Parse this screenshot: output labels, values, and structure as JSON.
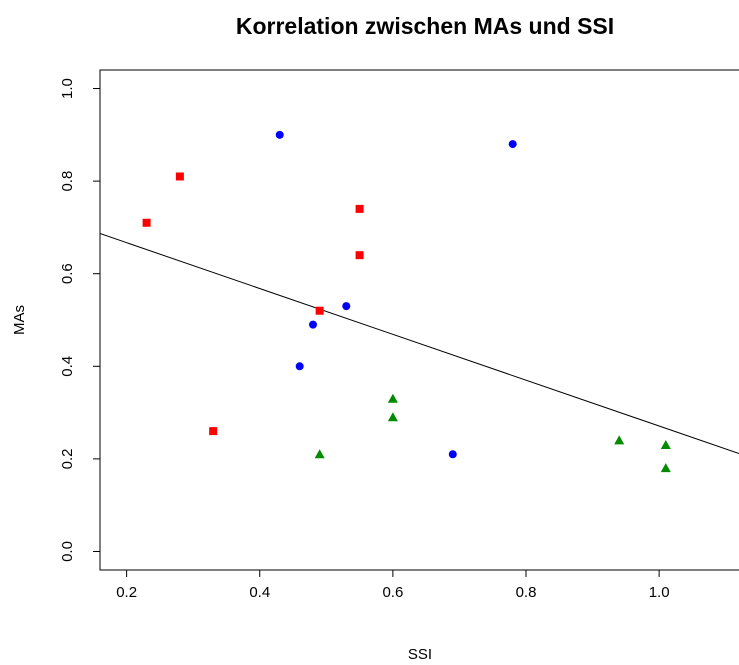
{
  "chart_data": {
    "type": "scatter",
    "title": "Korrelation zwischen MAs und SSI",
    "x_label": "SSI",
    "y_label": "MAs",
    "xlim": [
      0.16,
      1.12
    ],
    "ylim": [
      -0.04,
      1.04
    ],
    "xticks": [
      0.2,
      0.4,
      0.6,
      0.8,
      {
        "value": 1.0,
        "label": "1.0"
      }
    ],
    "yticks": [
      {
        "value": 0,
        "label": "0.0"
      },
      0.2,
      0.4,
      0.6,
      0.8,
      {
        "value": 1.0,
        "label": "1.0"
      }
    ],
    "series": [
      {
        "color": "#0000ff",
        "marker": "circle",
        "x": [
          0.43,
          0.78,
          0.53,
          0.48,
          0.46,
          0.69
        ],
        "values": [
          0.9,
          0.88,
          0.53,
          0.49,
          0.4,
          0.21
        ]
      },
      {
        "color": "#ff0000",
        "marker": "square",
        "x": [
          0.23,
          0.28,
          0.55,
          0.55,
          0.49,
          0.33
        ],
        "values": [
          0.71,
          0.81,
          0.74,
          0.64,
          0.52,
          0.26
        ]
      },
      {
        "color": "#008b00",
        "marker": "triangle",
        "x": [
          0.6,
          0.6,
          0.49,
          0.94,
          1.01,
          1.01
        ],
        "values": [
          0.33,
          0.29,
          0.21,
          0.24,
          0.23,
          0.18
        ]
      }
    ],
    "abline": {
      "intercept": 0.766,
      "slope": -0.495
    }
  }
}
